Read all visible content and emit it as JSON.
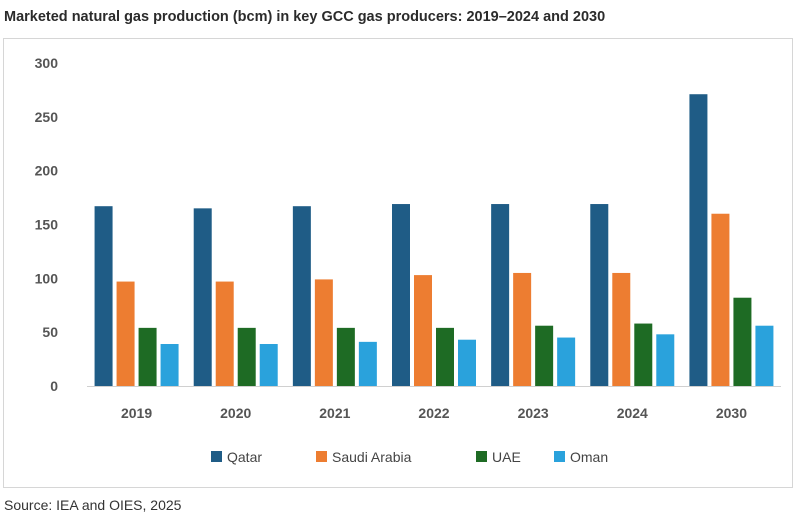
{
  "title": "Marketed natural gas production (bcm) in key GCC gas producers: 2019–2024 and 2030",
  "source": "Source: IEA and OIES, 2025",
  "chart_data": {
    "type": "bar",
    "title": "Marketed natural gas production (bcm) in key GCC gas producers: 2019–2024 and 2030",
    "xlabel": "",
    "ylabel": "",
    "categories": [
      "2019",
      "2020",
      "2021",
      "2022",
      "2023",
      "2024",
      "2030"
    ],
    "ylim": [
      0,
      300
    ],
    "yticks": [
      0,
      50,
      100,
      150,
      200,
      250,
      300
    ],
    "grid": false,
    "legend": "bottom",
    "series": [
      {
        "name": "Qatar",
        "color": "#1f5c86",
        "values": [
          167,
          165,
          167,
          169,
          169,
          169,
          271
        ]
      },
      {
        "name": "Saudi Arabia",
        "color": "#ed7d31",
        "values": [
          97,
          97,
          99,
          103,
          105,
          105,
          160
        ]
      },
      {
        "name": "UAE",
        "color": "#1e6b24",
        "values": [
          54,
          54,
          54,
          54,
          56,
          58,
          82
        ]
      },
      {
        "name": "Oman",
        "color": "#2aa2dc",
        "values": [
          39,
          39,
          41,
          43,
          45,
          48,
          56
        ]
      }
    ]
  }
}
